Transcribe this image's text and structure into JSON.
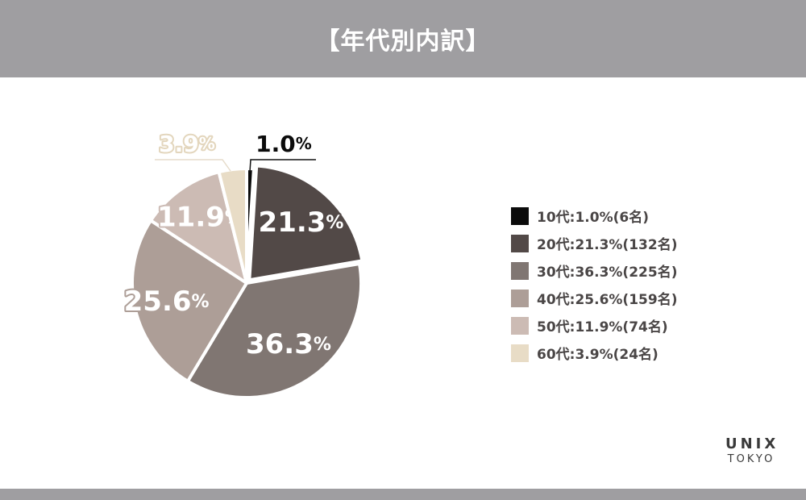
{
  "header": {
    "title": "【年代別内訳】"
  },
  "chart_data": {
    "type": "pie",
    "categories": [
      "10代",
      "20代",
      "30代",
      "40代",
      "50代",
      "60代"
    ],
    "values": [
      1.0,
      21.3,
      36.3,
      25.6,
      11.9,
      3.9
    ],
    "counts": [
      6,
      132,
      225,
      159,
      74,
      24
    ],
    "slice_labels": [
      "1.0",
      "21.3",
      "36.3",
      "25.6",
      "11.9",
      "3.9"
    ],
    "unit": "%",
    "colors": [
      "#0b0b0b",
      "#524947",
      "#807672",
      "#ad9e97",
      "#ccbbb4",
      "#e8dcc6"
    ],
    "label_text_colors": [
      "#0b0b0b",
      "#ffffff",
      "#ffffff",
      "#ffffff",
      "#ffffff",
      "#ffffff"
    ],
    "label_outline_colors": [
      "#ffffff",
      "#524947",
      "#807672",
      "#ad9e97",
      "#ccbbb4",
      "#e8dcc6"
    ],
    "legend": {
      "placement": "right",
      "items": [
        "10代:1.0%(6名)",
        "20代:21.3%(132名)",
        "30代:36.3%(225名)",
        "40代:25.6%(159名)",
        "50代:11.9%(74名)",
        "60代:3.9%(24名)"
      ]
    }
  },
  "brand": {
    "name": "UNIX",
    "city": "TOKYO"
  }
}
